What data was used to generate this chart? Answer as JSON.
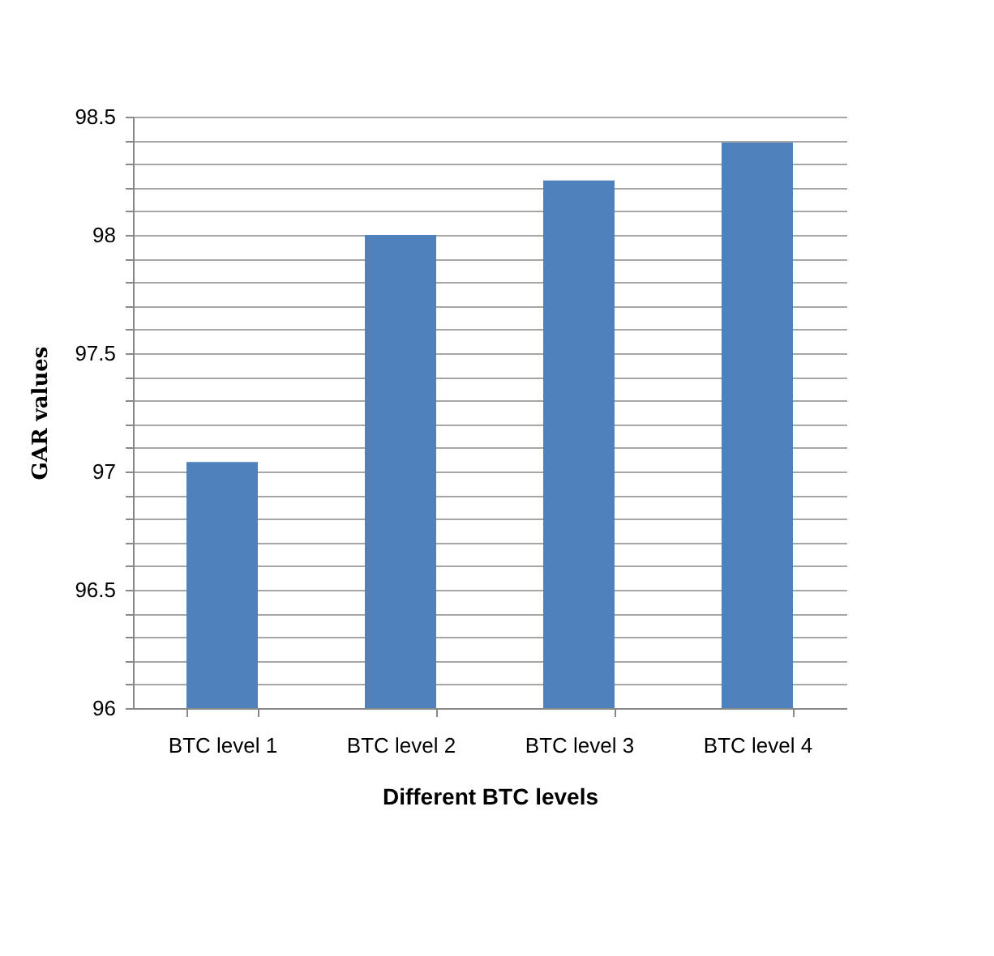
{
  "chart_data": {
    "type": "bar",
    "xlabel": "Different BTC levels",
    "ylabel": "GAR values",
    "categories": [
      "BTC level 1",
      "BTC level 2",
      "BTC level 3",
      "BTC level 4"
    ],
    "values": [
      97.04,
      98.0,
      98.23,
      98.39
    ],
    "color": "#4f81bd",
    "ylim": [
      96,
      98.5
    ],
    "yticks": [
      96,
      {
        "value": 96.1,
        "label": null
      },
      {
        "value": 96.2,
        "label": null
      },
      {
        "value": 96.3,
        "label": null
      },
      {
        "value": 96.4,
        "label": null
      },
      96.5,
      {
        "value": 96.6,
        "label": null
      },
      {
        "value": 96.7,
        "label": null
      },
      {
        "value": 96.8,
        "label": null
      },
      {
        "value": 96.9,
        "label": null
      },
      97,
      {
        "value": 97.1,
        "label": null
      },
      {
        "value": 97.2,
        "label": null
      },
      {
        "value": 97.3,
        "label": null
      },
      {
        "value": 97.4,
        "label": null
      },
      97.5,
      {
        "value": 97.6,
        "label": null
      },
      {
        "value": 97.7,
        "label": null
      },
      {
        "value": 97.8,
        "label": null
      },
      {
        "value": 97.9,
        "label": null
      },
      98,
      {
        "value": 98.1,
        "label": null
      },
      {
        "value": 98.2,
        "label": null
      },
      {
        "value": 98.3,
        "label": null
      },
      {
        "value": 98.4,
        "label": null
      },
      98.5
    ],
    "grid": true
  }
}
